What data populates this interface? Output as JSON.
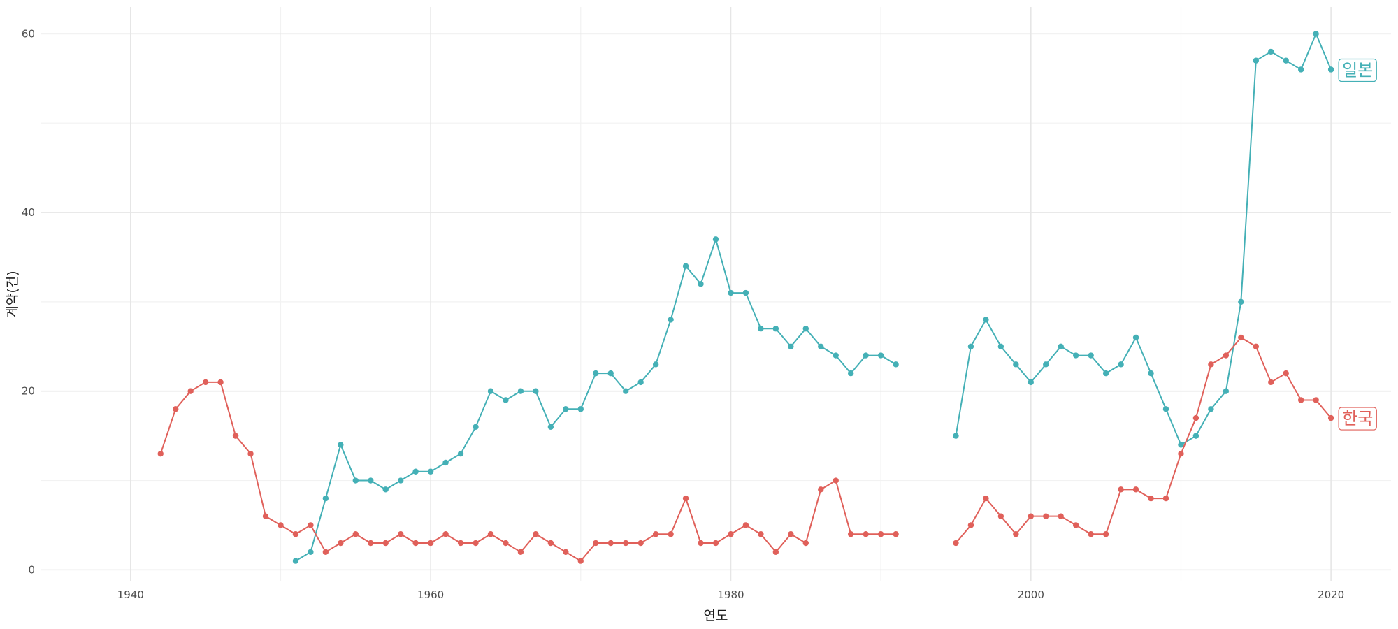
{
  "chart_data": {
    "type": "line",
    "xlabel": "연도",
    "ylabel": "계약(건)",
    "xlim": [
      1934,
      2024
    ],
    "ylim": [
      -1.3,
      63
    ],
    "x_ticks": [
      1940,
      1960,
      1980,
      2000,
      2020
    ],
    "y_ticks": [
      0,
      20,
      40,
      60
    ],
    "grid": true,
    "legend": "direct labels at line ends",
    "series": [
      {
        "name": "일본",
        "color": "#44b0b6",
        "points": [
          [
            1951,
            1
          ],
          [
            1952,
            2
          ],
          [
            1953,
            8
          ],
          [
            1954,
            14
          ],
          [
            1955,
            10
          ],
          [
            1956,
            10
          ],
          [
            1957,
            9
          ],
          [
            1958,
            10
          ],
          [
            1959,
            11
          ],
          [
            1960,
            11
          ],
          [
            1961,
            12
          ],
          [
            1962,
            13
          ],
          [
            1963,
            16
          ],
          [
            1964,
            20
          ],
          [
            1965,
            19
          ],
          [
            1966,
            20
          ],
          [
            1967,
            20
          ],
          [
            1968,
            16
          ],
          [
            1969,
            18
          ],
          [
            1970,
            18
          ],
          [
            1971,
            22
          ],
          [
            1972,
            22
          ],
          [
            1973,
            20
          ],
          [
            1974,
            21
          ],
          [
            1975,
            23
          ],
          [
            1976,
            28
          ],
          [
            1977,
            34
          ],
          [
            1978,
            32
          ],
          [
            1979,
            37
          ],
          [
            1980,
            31
          ],
          [
            1981,
            31
          ],
          [
            1982,
            27
          ],
          [
            1983,
            27
          ],
          [
            1984,
            25
          ],
          [
            1985,
            27
          ],
          [
            1986,
            25
          ],
          [
            1987,
            24
          ],
          [
            1988,
            22
          ],
          [
            1989,
            24
          ],
          [
            1990,
            24
          ],
          [
            1991,
            23
          ],
          [
            1992,
            null
          ],
          [
            1993,
            null
          ],
          [
            1994,
            null
          ],
          [
            1995,
            15
          ],
          [
            1996,
            25
          ],
          [
            1997,
            28
          ],
          [
            1998,
            25
          ],
          [
            1999,
            23
          ],
          [
            2000,
            21
          ],
          [
            2001,
            23
          ],
          [
            2002,
            25
          ],
          [
            2003,
            24
          ],
          [
            2004,
            24
          ],
          [
            2005,
            22
          ],
          [
            2006,
            23
          ],
          [
            2007,
            26
          ],
          [
            2008,
            22
          ],
          [
            2009,
            18
          ],
          [
            2010,
            14
          ],
          [
            2011,
            15
          ],
          [
            2012,
            18
          ],
          [
            2013,
            20
          ],
          [
            2014,
            30
          ],
          [
            2015,
            57
          ],
          [
            2016,
            58
          ],
          [
            2017,
            57
          ],
          [
            2018,
            56
          ],
          [
            2019,
            60
          ],
          [
            2020,
            56
          ]
        ]
      },
      {
        "name": "한국",
        "color": "#e0605a",
        "points": [
          [
            1942,
            13
          ],
          [
            1943,
            18
          ],
          [
            1944,
            20
          ],
          [
            1945,
            21
          ],
          [
            1946,
            21
          ],
          [
            1947,
            15
          ],
          [
            1948,
            13
          ],
          [
            1949,
            6
          ],
          [
            1950,
            5
          ],
          [
            1951,
            4
          ],
          [
            1952,
            5
          ],
          [
            1953,
            2
          ],
          [
            1954,
            3
          ],
          [
            1955,
            4
          ],
          [
            1956,
            3
          ],
          [
            1957,
            3
          ],
          [
            1958,
            4
          ],
          [
            1959,
            3
          ],
          [
            1960,
            3
          ],
          [
            1961,
            4
          ],
          [
            1962,
            3
          ],
          [
            1963,
            3
          ],
          [
            1964,
            4
          ],
          [
            1965,
            3
          ],
          [
            1966,
            2
          ],
          [
            1967,
            4
          ],
          [
            1968,
            3
          ],
          [
            1969,
            2
          ],
          [
            1970,
            1
          ],
          [
            1971,
            3
          ],
          [
            1972,
            3
          ],
          [
            1973,
            3
          ],
          [
            1974,
            3
          ],
          [
            1975,
            4
          ],
          [
            1976,
            4
          ],
          [
            1977,
            8
          ],
          [
            1978,
            3
          ],
          [
            1979,
            3
          ],
          [
            1980,
            4
          ],
          [
            1981,
            5
          ],
          [
            1982,
            4
          ],
          [
            1983,
            2
          ],
          [
            1984,
            4
          ],
          [
            1985,
            3
          ],
          [
            1986,
            9
          ],
          [
            1987,
            10
          ],
          [
            1988,
            4
          ],
          [
            1989,
            4
          ],
          [
            1990,
            4
          ],
          [
            1991,
            4
          ],
          [
            1992,
            null
          ],
          [
            1993,
            null
          ],
          [
            1994,
            null
          ],
          [
            1995,
            3
          ],
          [
            1996,
            5
          ],
          [
            1997,
            8
          ],
          [
            1998,
            6
          ],
          [
            1999,
            4
          ],
          [
            2000,
            6
          ],
          [
            2001,
            6
          ],
          [
            2002,
            6
          ],
          [
            2003,
            5
          ],
          [
            2004,
            4
          ],
          [
            2005,
            4
          ],
          [
            2006,
            9
          ],
          [
            2007,
            9
          ],
          [
            2008,
            8
          ],
          [
            2009,
            8
          ],
          [
            2010,
            13
          ],
          [
            2011,
            17
          ],
          [
            2012,
            23
          ],
          [
            2013,
            24
          ],
          [
            2014,
            26
          ],
          [
            2015,
            25
          ],
          [
            2016,
            21
          ],
          [
            2017,
            22
          ],
          [
            2018,
            19
          ],
          [
            2019,
            19
          ],
          [
            2020,
            17
          ]
        ]
      }
    ]
  }
}
